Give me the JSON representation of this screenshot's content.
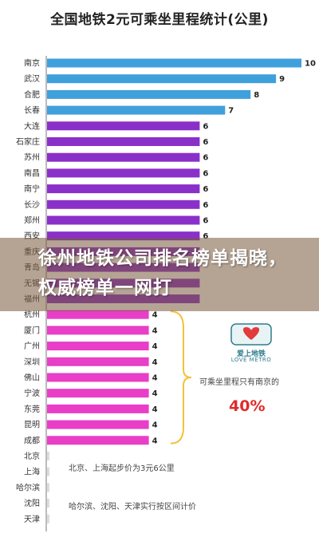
{
  "chart_data": {
    "type": "bar",
    "orientation": "horizontal",
    "title": "全国地铁2元可乘坐里程统计(公里)",
    "categories": [
      "南京",
      "武汉",
      "合肥",
      "长春",
      "大连",
      "石家庄",
      "苏州",
      "南昌",
      "南宁",
      "长沙",
      "郑州",
      "西安",
      "重庆",
      "青岛",
      "无锡",
      "福州",
      "杭州",
      "厦门",
      "广州",
      "深圳",
      "佛山",
      "宁波",
      "东莞",
      "昆明",
      "成都",
      "北京",
      "上海",
      "哈尔滨",
      "沈阳",
      "天津"
    ],
    "values": [
      10,
      9,
      8,
      7,
      6,
      6,
      6,
      6,
      6,
      6,
      6,
      6,
      6,
      6,
      6,
      6,
      4,
      4,
      4,
      4,
      4,
      4,
      4,
      4,
      4,
      0,
      0,
      0,
      0,
      0
    ],
    "value_labels": [
      "10",
      "9",
      "8",
      "7",
      "6",
      "6",
      "6",
      "6",
      "6",
      "6",
      "6",
      "6",
      "",
      "",
      "",
      "",
      "4",
      "4",
      "4",
      "4",
      "4",
      "4",
      "4",
      "4",
      "4",
      "",
      "",
      "",
      "",
      ""
    ],
    "xlim": [
      0,
      10
    ],
    "colors": {
      "top4": "#3fa0dc",
      "six": "#8b2fc9",
      "four": "#e83ec8",
      "bracket": "#f2c23a",
      "percent": "#e22a2a"
    },
    "annotations": {
      "nanjing_only": "可乘坐里程只有南京的",
      "percent": "40%",
      "beijing_shanghai": "北京、上海起步价为3元6公里",
      "zone_pricing": "哈尔滨、沈阳、天津实行按区间计价"
    }
  },
  "overlay": {
    "headline": "徐州地铁公司排名榜单揭晓，权威榜单一网打",
    "logo_text": "爱上地铁",
    "logo_subtext": "LOVE METRO"
  }
}
